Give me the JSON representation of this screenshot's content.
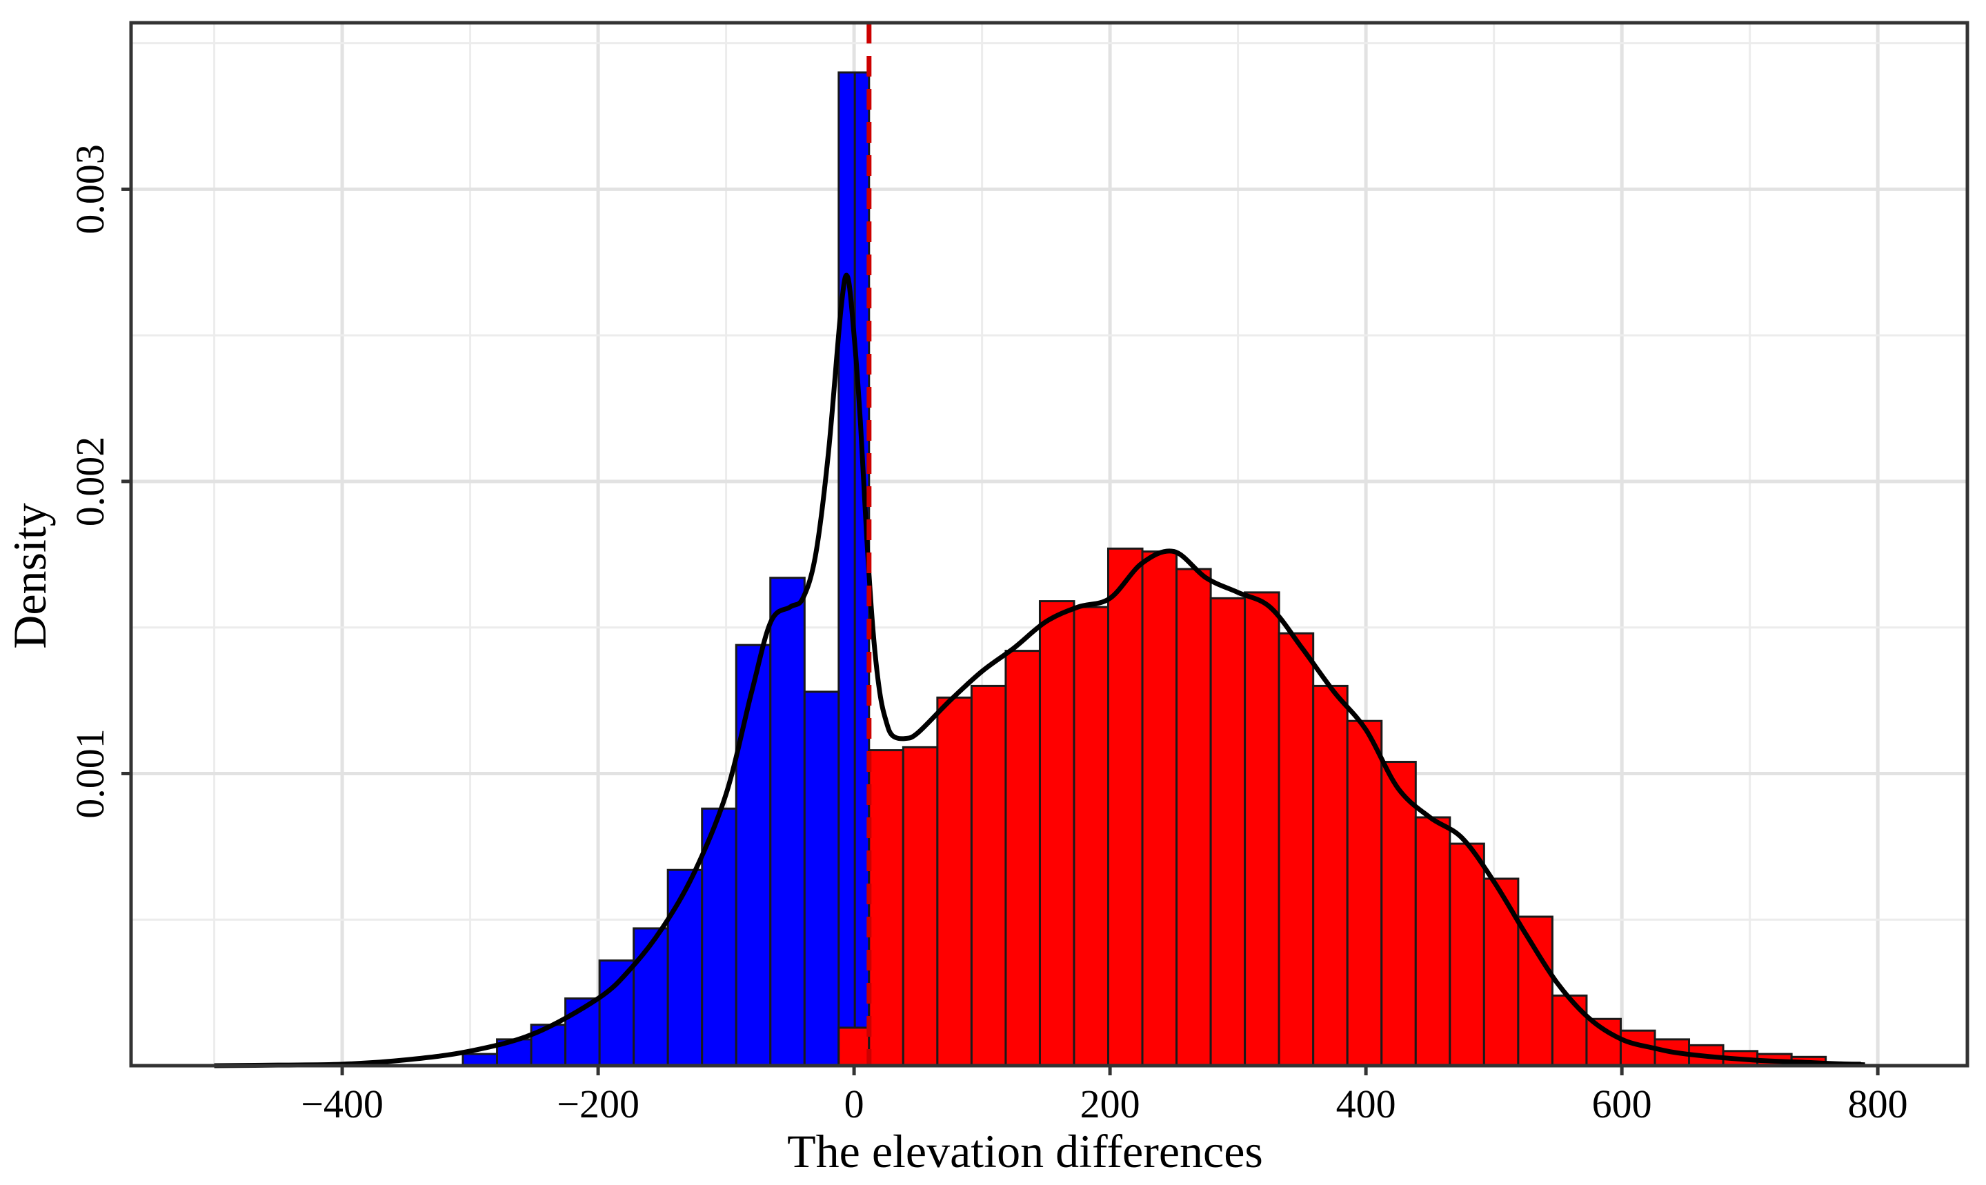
{
  "chart_data": {
    "type": "bar",
    "xlabel": "The elevation differences",
    "ylabel": "Density",
    "xlim": [
      -565,
      870
    ],
    "ylim": [
      0,
      0.00357
    ],
    "x_ticks": [
      -400,
      -200,
      0,
      200,
      400,
      600,
      800
    ],
    "x_tick_labels": [
      "−400",
      "−200",
      "0",
      "200",
      "400",
      "600",
      "800"
    ],
    "y_ticks": [
      0.001,
      0.002,
      0.003
    ],
    "y_tick_labels": [
      "0.001",
      "0.002",
      "0.003"
    ],
    "grid": true,
    "legend": "none",
    "bin_width": 26.7,
    "blue_bins": {
      "color": "#0000ff",
      "left_edges": [
        -305.7,
        -279,
        -252.3,
        -225.6,
        -198.9,
        -172.2,
        -145.5,
        -118.8,
        -92.1,
        -65.4,
        -38.7,
        -12,
        0.6
      ],
      "right_edges": [
        -279,
        -252.3,
        -225.6,
        -198.9,
        -172.2,
        -145.5,
        -118.8,
        -92.1,
        -65.4,
        -38.7,
        -12,
        0.6,
        11.7
      ],
      "values": [
        4e-05,
        9e-05,
        0.00014,
        0.00023,
        0.00036,
        0.00047,
        0.00067,
        0.00088,
        0.00144,
        0.00167,
        0.00128,
        0.0034,
        0.0034
      ]
    },
    "red_bins": {
      "color": "#ff0000",
      "left_edges": [
        -12,
        11.7,
        38.4,
        65.1,
        91.8,
        118.5,
        145.2,
        171.9,
        198.6,
        225.3,
        252,
        278.7,
        305.4,
        332.1,
        358.8,
        385.5,
        412.2,
        438.9,
        465.6,
        492.3,
        519,
        545.7,
        572.4,
        599.1,
        625.8,
        652.5,
        679.2,
        705.9,
        732.6,
        759.3
      ],
      "values": [
        0.00013,
        0.00108,
        0.00109,
        0.00126,
        0.0013,
        0.00142,
        0.00159,
        0.00157,
        0.00177,
        0.00176,
        0.0017,
        0.0016,
        0.00162,
        0.00148,
        0.0013,
        0.00118,
        0.00104,
        0.00085,
        0.00076,
        0.00064,
        0.00051,
        0.00024,
        0.00016,
        0.00012,
        9e-05,
        7e-05,
        5e-05,
        4e-05,
        3e-05,
        1e-05
      ]
    },
    "density_curve": {
      "color": "#000000",
      "x": [
        -500,
        -450,
        -400,
        -350,
        -300,
        -250,
        -200,
        -175,
        -150,
        -125,
        -100,
        -80,
        -65,
        -50,
        -40,
        -30,
        -20,
        -10,
        -5,
        0,
        5,
        10,
        15,
        20,
        25,
        30,
        40,
        50,
        75,
        100,
        125,
        150,
        175,
        200,
        225,
        250,
        275,
        300,
        325,
        350,
        375,
        400,
        425,
        450,
        475,
        500,
        525,
        550,
        575,
        600,
        625,
        650,
        700,
        750,
        790
      ],
      "y": [
        0.0,
        2e-06,
        5e-06,
        2e-05,
        5e-05,
        0.00011,
        0.00023,
        0.00033,
        0.00047,
        0.00066,
        0.00093,
        0.00128,
        0.00152,
        0.00157,
        0.0016,
        0.00175,
        0.0021,
        0.0026,
        0.0027,
        0.0025,
        0.0022,
        0.0018,
        0.00148,
        0.00128,
        0.00118,
        0.00113,
        0.00112,
        0.00114,
        0.00125,
        0.00135,
        0.00143,
        0.00152,
        0.00157,
        0.0016,
        0.00172,
        0.00176,
        0.00167,
        0.00162,
        0.00157,
        0.00143,
        0.00128,
        0.00115,
        0.00095,
        0.00085,
        0.00078,
        0.00063,
        0.00045,
        0.00028,
        0.00016,
        9e-05,
        6e-05,
        4e-05,
        2e-05,
        1e-05,
        3e-06
      ]
    },
    "reference_line": {
      "x": 11.7,
      "color": "#cc0000",
      "style": "dashed"
    }
  }
}
